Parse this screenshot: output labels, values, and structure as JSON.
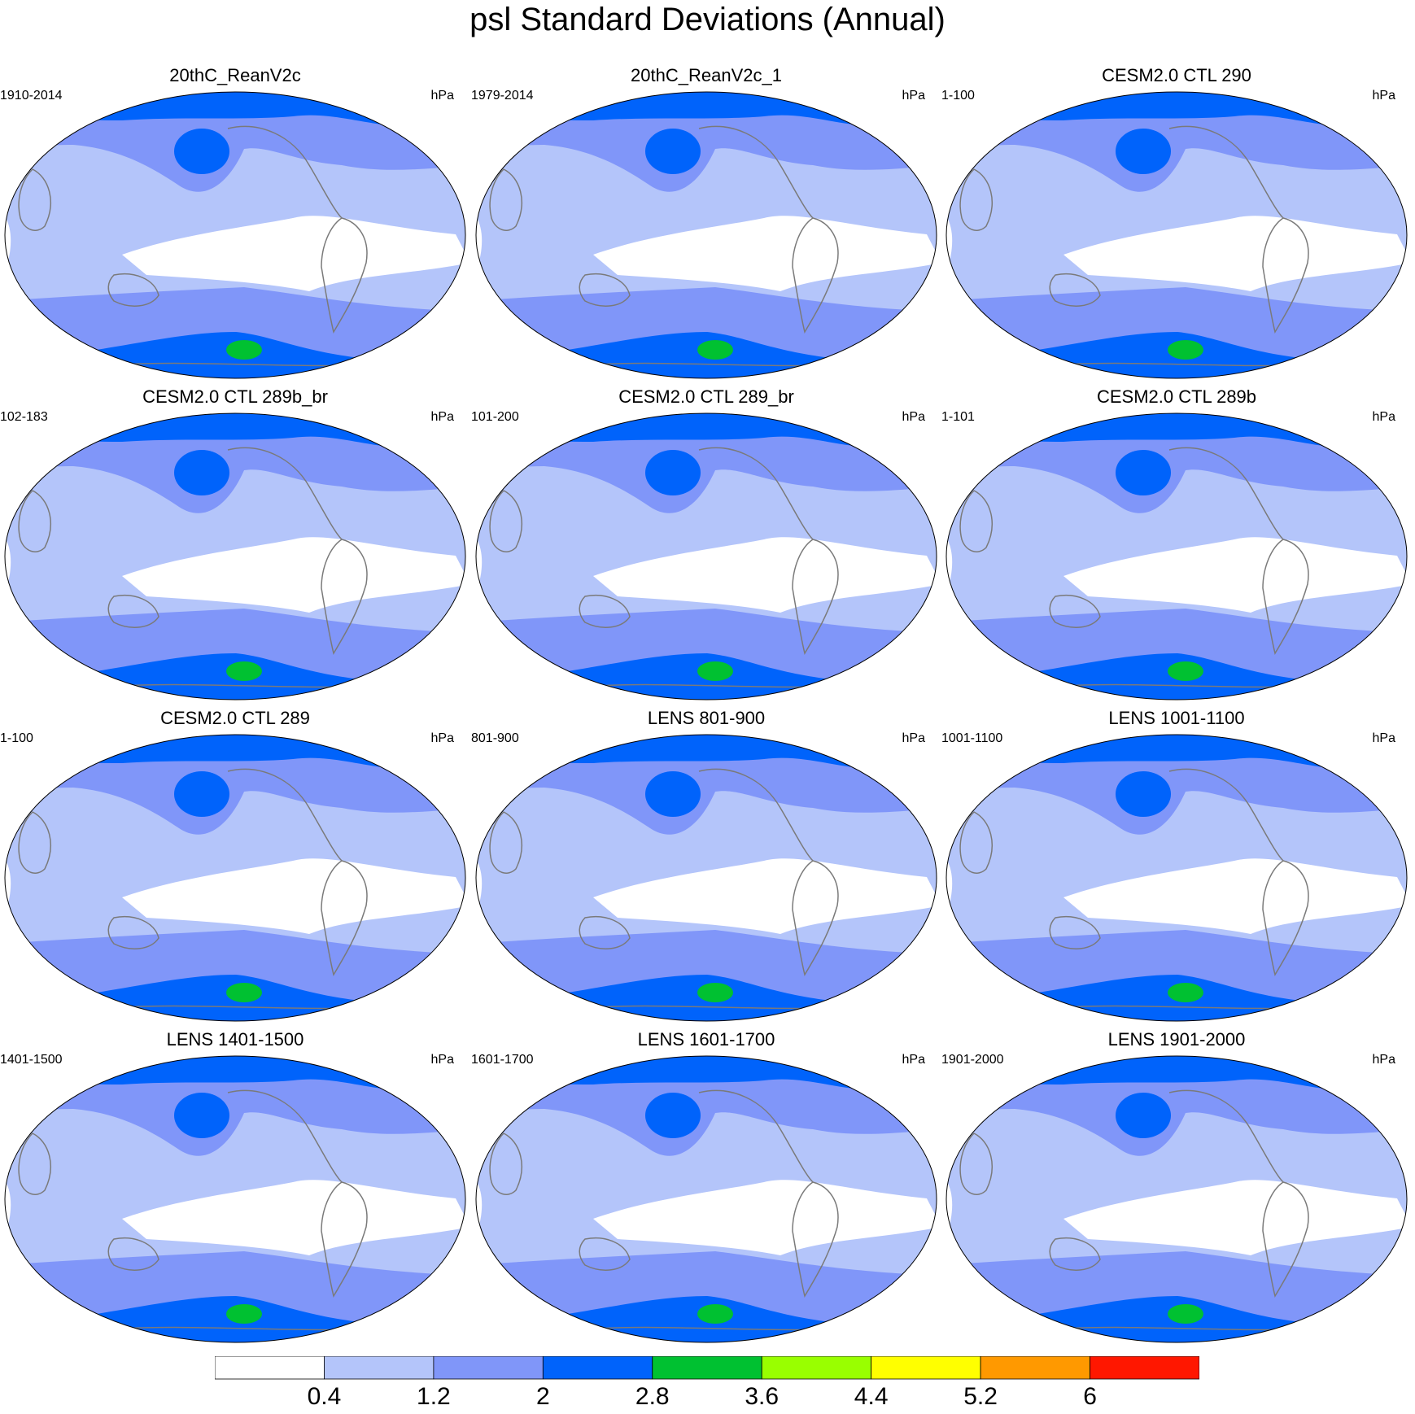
{
  "title": "psl Standard Deviations (Annual)",
  "chart_data": {
    "type": "heatmap",
    "title": "psl Standard Deviations (Annual)",
    "units": "hPa",
    "colorbar": {
      "levels": [
        "0.4",
        "1.2",
        "2",
        "2.8",
        "3.6",
        "4.4",
        "5.2",
        "6"
      ],
      "colors": [
        "#ffffff",
        "#b4c5fa",
        "#8096f9",
        "#0063fb",
        "#00c131",
        "#99ff00",
        "#ffff00",
        "#ff9900",
        "#ff1700"
      ]
    },
    "panels": [
      {
        "name": "20thC_ReanV2c",
        "period": "1910-2014",
        "units": "hPa"
      },
      {
        "name": "20thC_ReanV2c_1",
        "period": "1979-2014",
        "units": "hPa"
      },
      {
        "name": "CESM2.0 CTL 290",
        "period": "1-100",
        "units": "hPa"
      },
      {
        "name": "CESM2.0 CTL 289b_br",
        "period": "102-183",
        "units": "hPa"
      },
      {
        "name": "CESM2.0 CTL 289_br",
        "period": "101-200",
        "units": "hPa"
      },
      {
        "name": "CESM2.0 CTL 289b",
        "period": "1-101",
        "units": "hPa"
      },
      {
        "name": "CESM2.0 CTL 289",
        "period": "1-100",
        "units": "hPa"
      },
      {
        "name": "LENS 801-900",
        "period": "801-900",
        "units": "hPa"
      },
      {
        "name": "LENS 1001-1100",
        "period": "1001-1100",
        "units": "hPa"
      },
      {
        "name": "LENS 1401-1500",
        "period": "1401-1500",
        "units": "hPa"
      },
      {
        "name": "LENS 1601-1700",
        "period": "1601-1700",
        "units": "hPa"
      },
      {
        "name": "LENS 1901-2000",
        "period": "1901-2000",
        "units": "hPa"
      }
    ]
  }
}
